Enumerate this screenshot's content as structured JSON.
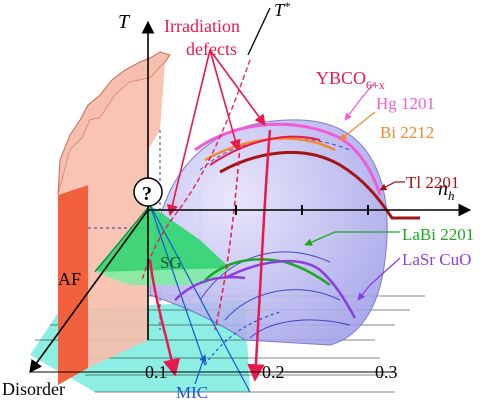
{
  "axes": {
    "temperature": "T",
    "pseudogap": "T",
    "pseudogap_superscript": "*",
    "doping": "n",
    "doping_subscript": "h",
    "disorder": "Disorder"
  },
  "ticks": [
    "0.1",
    "0.2",
    "0.3"
  ],
  "regions": {
    "af": "AF",
    "sg": "SG",
    "question": "?"
  },
  "annotations": {
    "irradiation_line1": "Irradiation",
    "irradiation_line2": "defects",
    "mic": "MIC"
  },
  "materials": {
    "ybco": "YBCO",
    "ybco_sub": "6+x",
    "hg": "Hg 1201",
    "bi": "Bi 2212",
    "tl": "Tl 2201",
    "labi": "LaBi 2201",
    "lasr": "LaSr CuO"
  },
  "colors": {
    "af": "#f2603d",
    "af_face": "#f7bfae",
    "sc_dome": "#b9b8f2",
    "sg": "#2ed66f",
    "mic_floor": "#79ecdf",
    "red": "#e8194d",
    "hg": "#f25ad8",
    "bi": "#f08a2a",
    "tl": "#a31414",
    "labi": "#1ea820",
    "lasr": "#8c3fe0",
    "mic": "#1a55d8"
  }
}
